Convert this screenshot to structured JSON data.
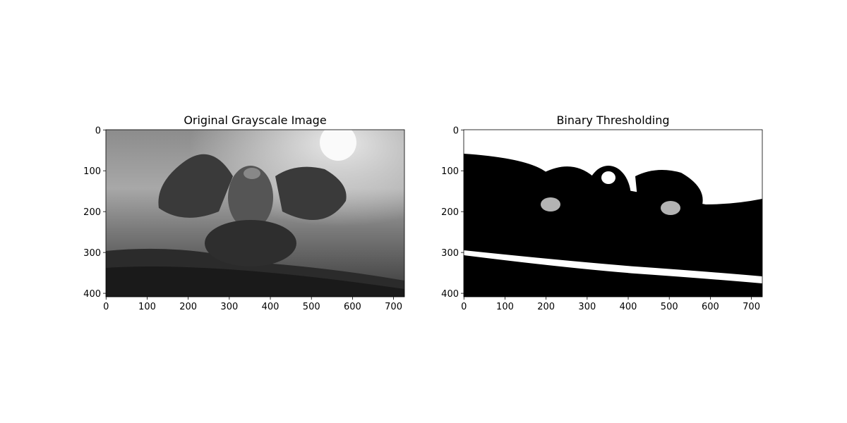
{
  "chart_data": [
    {
      "type": "image",
      "title": "Original Grayscale Image",
      "xlim": [
        -0.5,
        726.5
      ],
      "ylim": [
        408.5,
        -0.5
      ],
      "xticks": [
        0,
        100,
        200,
        300,
        400,
        500,
        600,
        700
      ],
      "yticks": [
        0,
        100,
        200,
        300,
        400
      ]
    },
    {
      "type": "image",
      "title": "Binary Thresholding",
      "xlim": [
        -0.5,
        726.5
      ],
      "ylim": [
        408.5,
        -0.5
      ],
      "xticks": [
        0,
        100,
        200,
        300,
        400,
        500,
        600,
        700
      ],
      "yticks": [
        0,
        100,
        200,
        300,
        400
      ]
    }
  ]
}
